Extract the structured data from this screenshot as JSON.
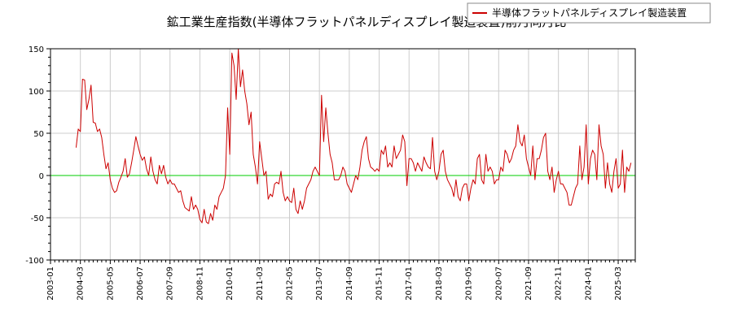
{
  "chart_data": {
    "type": "line",
    "title": "鉱工業生産指数(半導体フラットパネルディスプレイ製造装置)前月同月比",
    "xlabel": "",
    "ylabel": "",
    "ylim": [
      -100,
      150
    ],
    "yticks": [
      -100,
      -50,
      0,
      50,
      100,
      150
    ],
    "ytick_labels": [
      "-100",
      "-50",
      "0",
      "50",
      "100",
      "150"
    ],
    "xlim": [
      0,
      274
    ],
    "xticks": [
      0,
      14,
      28,
      42,
      56,
      70,
      84,
      98,
      112,
      126,
      140,
      154,
      168,
      182,
      196,
      210,
      224,
      238,
      252,
      266
    ],
    "xtick_labels": [
      "2003-01",
      "2004-03",
      "2005-05",
      "2006-07",
      "2007-09",
      "2008-11",
      "2010-01",
      "2011-03",
      "2012-05",
      "2013-07",
      "2014-09",
      "2015-11",
      "2017-01",
      "2018-03",
      "2019-05",
      "2020-07",
      "2021-09",
      "2022-11",
      "2024-01",
      "2025-03"
    ],
    "grid": true,
    "zero_line_color": "#00cc00",
    "legend": {
      "position": "top-right",
      "entries": [
        "半導体フラットパネルディスプレイ製造装置"
      ]
    },
    "series": [
      {
        "name": "半導体フラットパネルディスプレイ製造装置",
        "color": "#cc0000",
        "x_start": 12,
        "values": [
          33,
          55,
          52,
          114,
          113,
          78,
          90,
          107,
          63,
          62,
          52,
          55,
          45,
          25,
          8,
          15,
          -5,
          -15,
          -20,
          -18,
          -8,
          -2,
          5,
          20,
          -2,
          2,
          15,
          30,
          46,
          35,
          25,
          18,
          22,
          8,
          0,
          22,
          5,
          -5,
          -10,
          12,
          2,
          12,
          -2,
          -10,
          -5,
          -10,
          -10,
          -15,
          -20,
          -18,
          -30,
          -38,
          -40,
          -42,
          -25,
          -40,
          -35,
          -40,
          -52,
          -56,
          -40,
          -55,
          -57,
          -45,
          -53,
          -35,
          -40,
          -25,
          -20,
          -15,
          0,
          80,
          25,
          145,
          130,
          90,
          150,
          105,
          125,
          100,
          85,
          60,
          75,
          25,
          10,
          -10,
          40,
          20,
          0,
          5,
          -28,
          -22,
          -25,
          -10,
          -8,
          -10,
          5,
          -20,
          -30,
          -25,
          -30,
          -32,
          -15,
          -40,
          -45,
          -30,
          -40,
          -30,
          -15,
          -10,
          -5,
          5,
          10,
          5,
          0,
          95,
          40,
          80,
          50,
          25,
          15,
          -5,
          -5,
          -5,
          0,
          10,
          5,
          -10,
          -15,
          -20,
          -10,
          0,
          -5,
          10,
          30,
          40,
          46,
          20,
          10,
          8,
          5,
          8,
          5,
          30,
          25,
          35,
          10,
          15,
          10,
          35,
          20,
          25,
          30,
          48,
          40,
          -12,
          20,
          20,
          15,
          5,
          15,
          10,
          5,
          22,
          15,
          10,
          8,
          45,
          5,
          -5,
          5,
          25,
          30,
          5,
          -5,
          -10,
          -15,
          -25,
          -5,
          -25,
          -30,
          -15,
          -10,
          -10,
          -30,
          -15,
          -5,
          -10,
          20,
          25,
          -5,
          -10,
          25,
          5,
          10,
          5,
          -10,
          -5,
          -5,
          10,
          5,
          30,
          25,
          15,
          20,
          30,
          35,
          60,
          40,
          35,
          48,
          20,
          10,
          0,
          35,
          -5,
          20,
          20,
          30,
          45,
          50,
          5,
          -5,
          10,
          -20,
          -5,
          5,
          -10,
          -10,
          -15,
          -20,
          -35,
          -35,
          -25,
          -15,
          -10,
          35,
          -5,
          10,
          60,
          -10,
          20,
          30,
          25,
          -5,
          60,
          35,
          25,
          -15,
          15,
          -10,
          -20,
          5,
          20,
          -15,
          -10,
          30,
          -20,
          10,
          5,
          15
        ]
      }
    ]
  }
}
